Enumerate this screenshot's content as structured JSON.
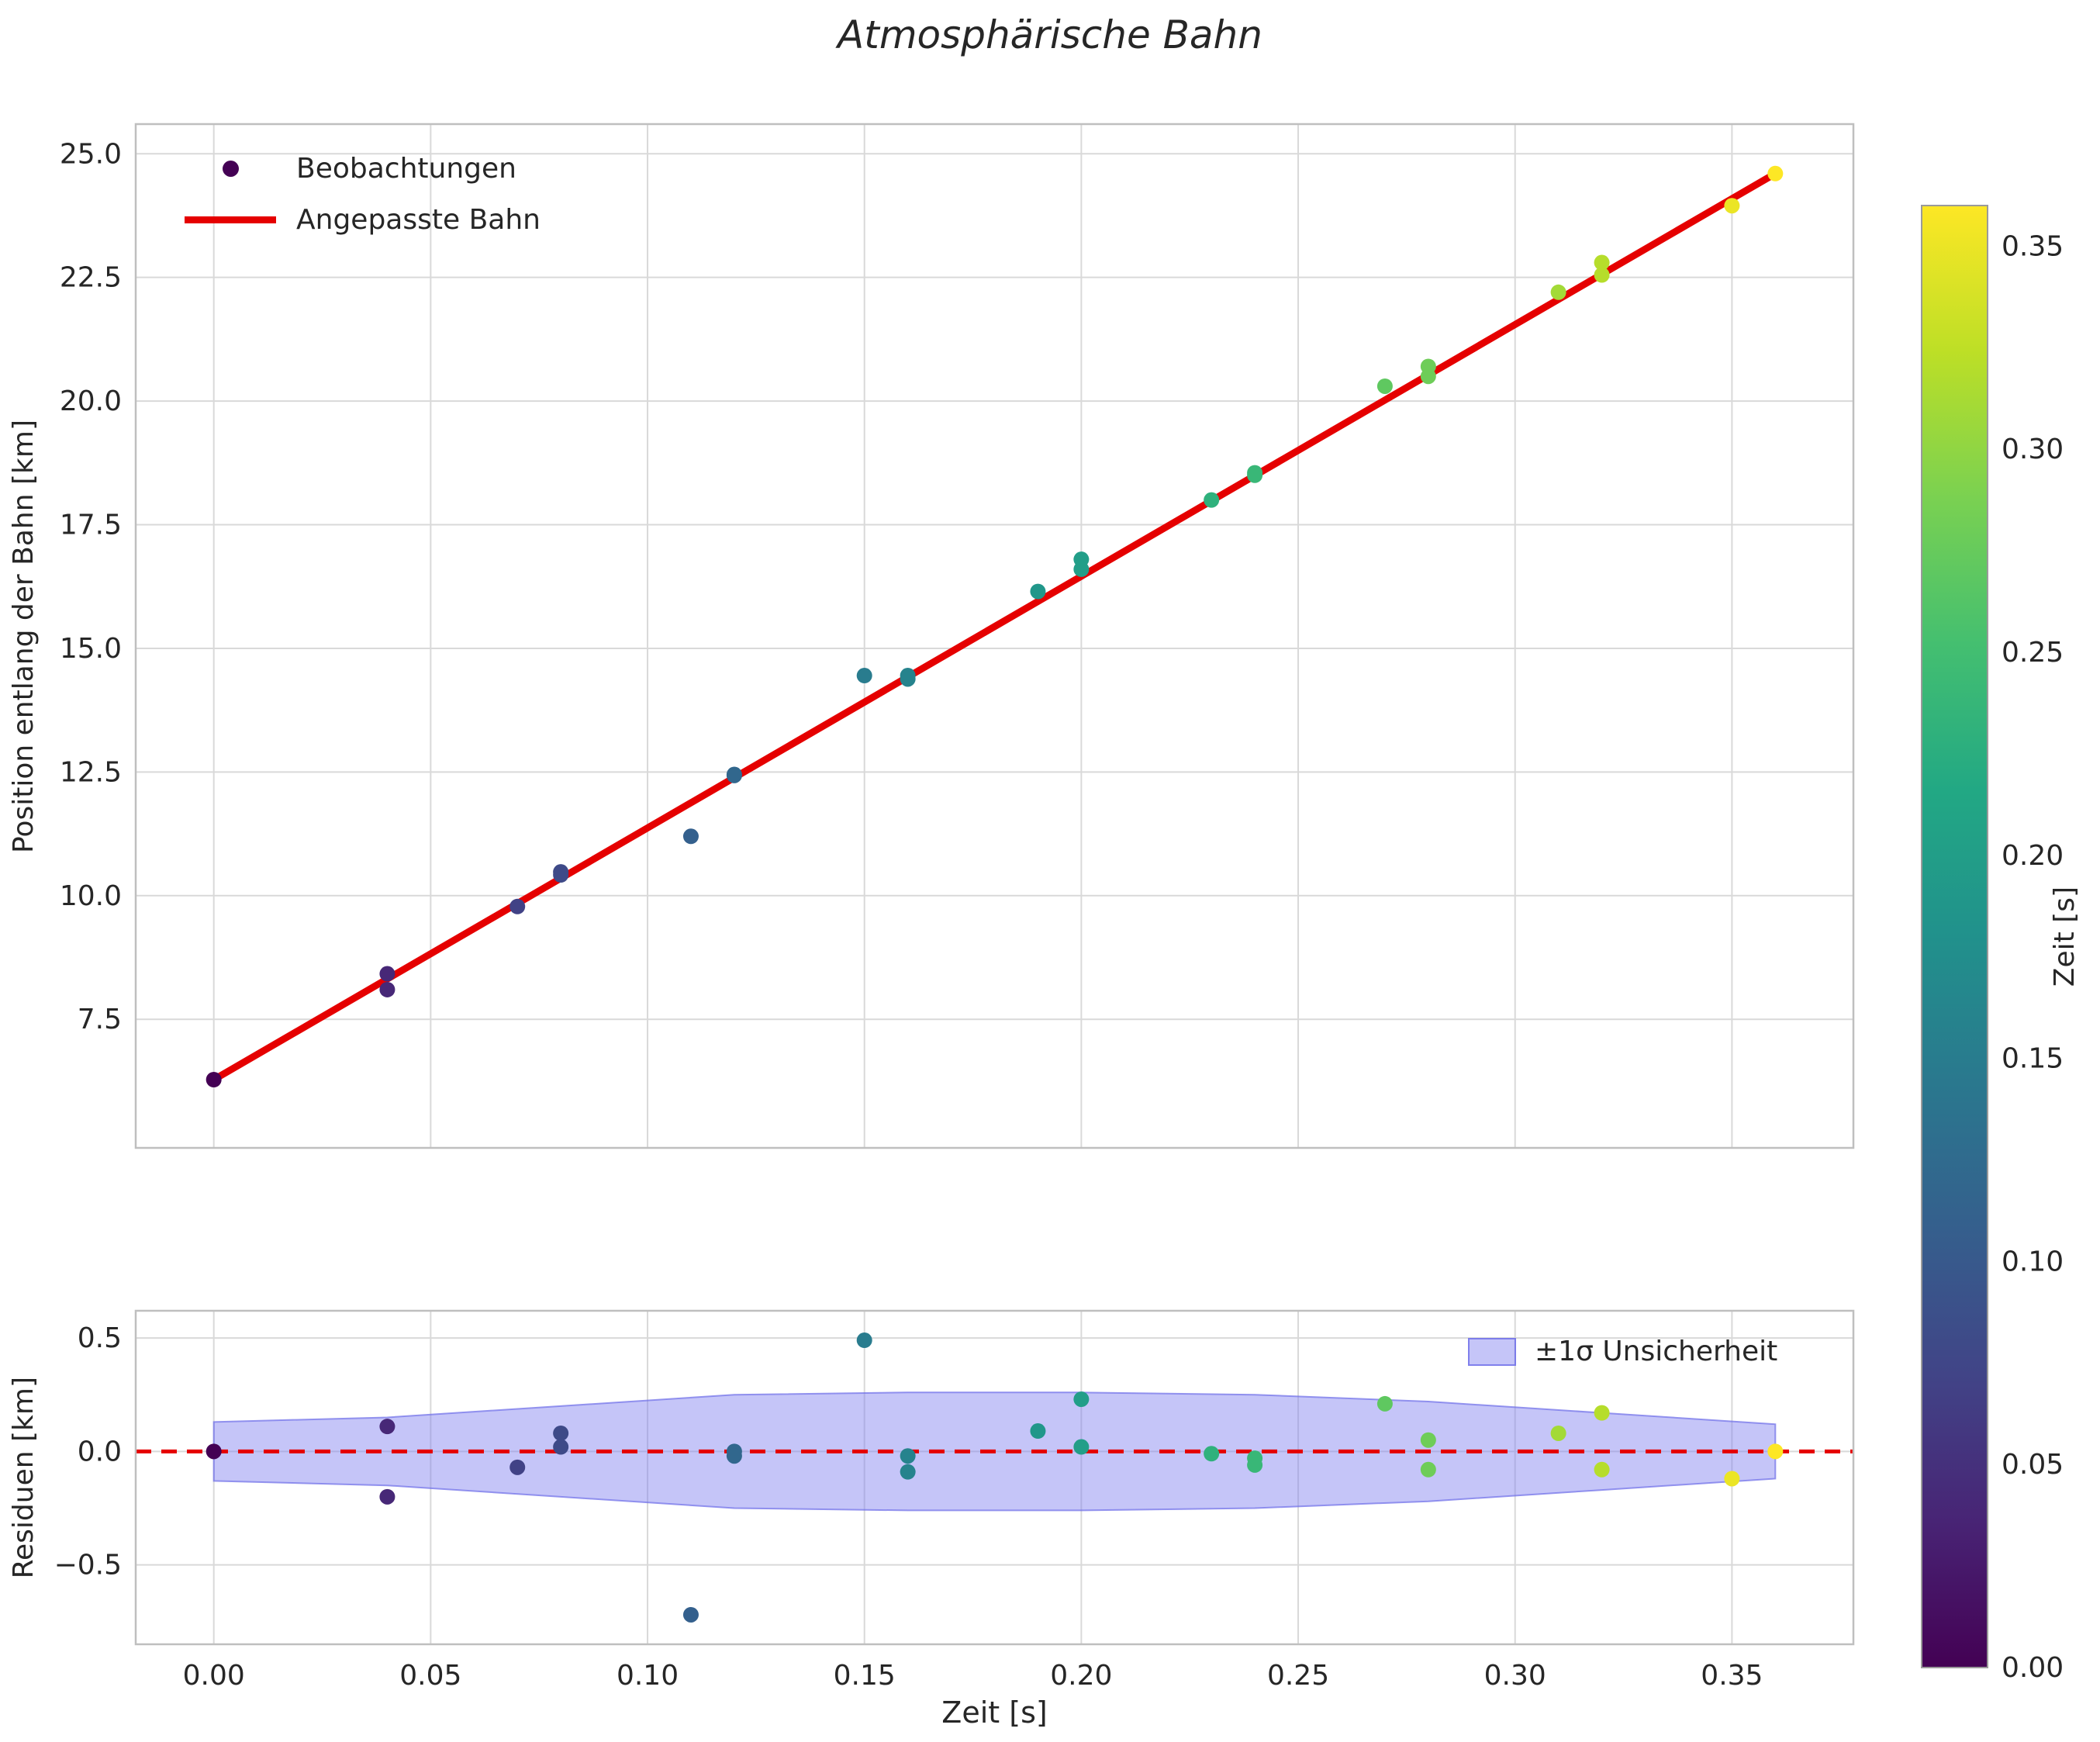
{
  "title": "Atmosphärische Bahn",
  "colors": {
    "fit_line": "#e50000",
    "zero_line": "#e50000",
    "band_fill": "#7f7ff0",
    "band_edge": "#6e6ee8",
    "grid": "#d9d9d9",
    "frame": "#bfbfbf",
    "text": "#262626",
    "legend_dot": "#440154",
    "colormap": "viridis"
  },
  "axes": {
    "main": {
      "ylabel": "Position entlang der Bahn [km]",
      "ylim": [
        4.9,
        25.6
      ],
      "xlim": [
        -0.018,
        0.378
      ],
      "yticks": [
        7.5,
        10.0,
        12.5,
        15.0,
        17.5,
        20.0,
        22.5,
        25.0
      ],
      "ytick_labels": [
        "7.5",
        "10.0",
        "12.5",
        "15.0",
        "17.5",
        "20.0",
        "22.5",
        "25.0"
      ],
      "xticks": [
        0.0,
        0.05,
        0.1,
        0.15,
        0.2,
        0.25,
        0.3,
        0.35
      ]
    },
    "residual": {
      "ylabel": "Residuen [km]",
      "xlabel": "Zeit [s]",
      "ylim": [
        -0.85,
        0.62
      ],
      "xlim": [
        -0.018,
        0.378
      ],
      "yticks": [
        -0.5,
        0.0,
        0.5
      ],
      "ytick_labels": [
        "−0.5",
        "0.0",
        "0.5"
      ],
      "xticks": [
        0.0,
        0.05,
        0.1,
        0.15,
        0.2,
        0.25,
        0.3,
        0.35
      ],
      "xtick_labels": [
        "0.00",
        "0.05",
        "0.10",
        "0.15",
        "0.20",
        "0.25",
        "0.30",
        "0.35"
      ]
    }
  },
  "legend_main": {
    "items": [
      {
        "label": "Beobachtungen",
        "marker": "dot"
      },
      {
        "label": "Angepasste Bahn",
        "marker": "line"
      }
    ]
  },
  "legend_residual": {
    "items": [
      {
        "label": "±1σ Unsicherheit",
        "marker": "patch"
      }
    ]
  },
  "colorbar": {
    "label": "Zeit [s]",
    "vmin": 0.0,
    "vmax": 0.36,
    "ticks": [
      0.0,
      0.05,
      0.1,
      0.15,
      0.2,
      0.25,
      0.3,
      0.35
    ],
    "tick_labels": [
      "0.00",
      "0.05",
      "0.10",
      "0.15",
      "0.20",
      "0.25",
      "0.30",
      "0.35"
    ]
  },
  "chart_data": [
    {
      "type": "scatter",
      "name": "Beobachtungen",
      "xlabel_shared": true,
      "color_by": "x",
      "x": [
        0.0,
        0.04,
        0.04,
        0.07,
        0.08,
        0.08,
        0.11,
        0.12,
        0.12,
        0.15,
        0.16,
        0.16,
        0.19,
        0.2,
        0.2,
        0.23,
        0.24,
        0.24,
        0.27,
        0.28,
        0.28,
        0.31,
        0.32,
        0.32,
        0.35,
        0.36
      ],
      "y": [
        6.28,
        8.42,
        8.1,
        9.78,
        10.48,
        10.42,
        11.2,
        12.45,
        12.43,
        14.45,
        14.45,
        14.38,
        16.15,
        16.8,
        16.6,
        18.0,
        18.55,
        18.5,
        20.3,
        20.7,
        20.5,
        22.2,
        22.8,
        22.55,
        23.95,
        24.6
      ],
      "fit_line": {
        "name": "Angepasste Bahn",
        "x": [
          0.0,
          0.36
        ],
        "y": [
          6.28,
          24.6
        ]
      }
    },
    {
      "type": "scatter",
      "name": "Residuen",
      "color_by": "x",
      "zero_line": 0.0,
      "x": [
        0.0,
        0.04,
        0.04,
        0.07,
        0.08,
        0.08,
        0.11,
        0.12,
        0.12,
        0.15,
        0.16,
        0.16,
        0.19,
        0.2,
        0.2,
        0.23,
        0.24,
        0.24,
        0.27,
        0.28,
        0.28,
        0.31,
        0.32,
        0.32,
        0.35,
        0.36
      ],
      "y": [
        0.0,
        0.11,
        -0.2,
        -0.07,
        0.08,
        0.02,
        -0.72,
        0.0,
        -0.02,
        0.49,
        -0.02,
        -0.09,
        0.09,
        0.23,
        0.02,
        -0.01,
        -0.03,
        -0.06,
        0.21,
        0.05,
        -0.08,
        0.08,
        0.17,
        -0.08,
        -0.12,
        0.0
      ],
      "band": {
        "label": "±1σ Unsicherheit",
        "x": [
          0.0,
          0.04,
          0.08,
          0.12,
          0.16,
          0.2,
          0.24,
          0.28,
          0.32,
          0.36
        ],
        "upper": [
          0.13,
          0.15,
          0.2,
          0.25,
          0.26,
          0.26,
          0.25,
          0.22,
          0.17,
          0.12
        ],
        "lower": [
          -0.13,
          -0.15,
          -0.2,
          -0.25,
          -0.26,
          -0.26,
          -0.25,
          -0.22,
          -0.17,
          -0.12
        ]
      }
    }
  ]
}
